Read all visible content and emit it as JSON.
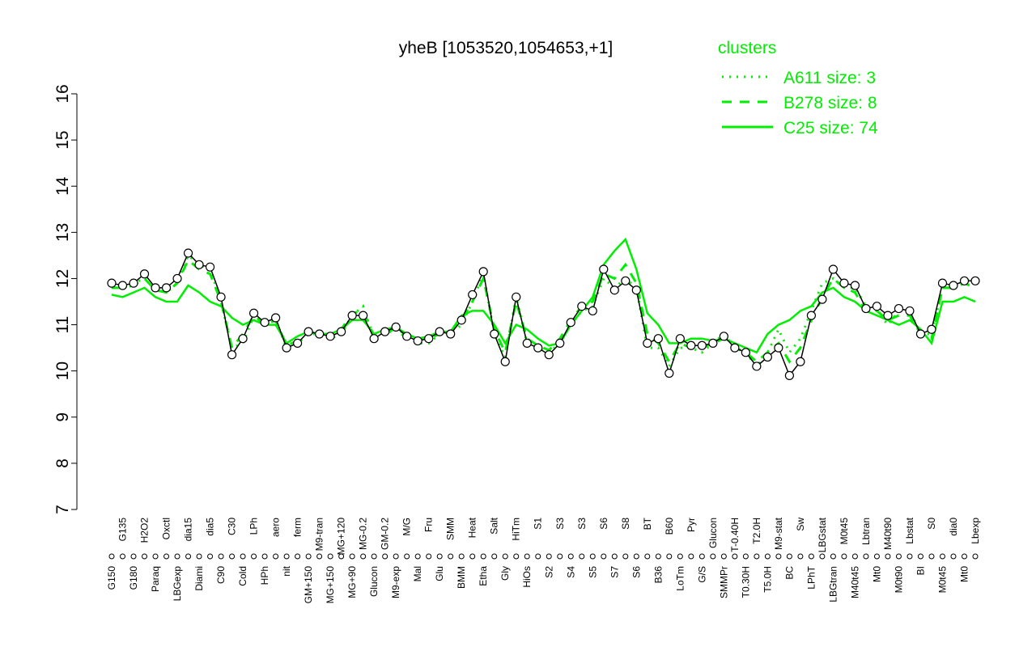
{
  "chart_data": {
    "type": "line",
    "title": "yheB [1053520,1054653,+1]",
    "legend_title": "clusters",
    "legend_color": "#00ee00",
    "color": "#000000",
    "ylim": [
      7,
      16
    ],
    "yticks": [
      7,
      8,
      9,
      10,
      11,
      12,
      13,
      14,
      15,
      16
    ],
    "categories": [
      "G150",
      "G135",
      "G180",
      "H2O2",
      "Paraq",
      "Oxctl",
      "LBGexp",
      "dia15",
      "Diami",
      "dia5",
      "C90",
      "C30",
      "Cold",
      "LPh",
      "HPh",
      "aero",
      "nit",
      "ferm",
      "GM+150",
      "M9-tran",
      "MG+150",
      "MG+120",
      "MG+90",
      "MG-0.2",
      "Glucon",
      "GM-0.2",
      "M9-exp",
      "M/G",
      "Mal",
      "Fru",
      "Glu",
      "SMM",
      "BMM",
      "Heat",
      "Etha",
      "Salt",
      "Gly",
      "HiTm",
      "HiOs",
      "S1",
      "S2",
      "S3",
      "S4",
      "S3",
      "S5",
      "S6",
      "S7",
      "S8",
      "S6",
      "BT",
      "B36",
      "B60",
      "LoTm",
      "Pyr",
      "G/S",
      "Glucon",
      "SMMPr",
      "T-0.40H",
      "T0.30H",
      "T2.0H",
      "T5.0H",
      "M9-stat",
      "BC",
      "Sw",
      "LPhT",
      "LBGstat",
      "LBGtran",
      "M0t45",
      "M40t45",
      "Lbtran",
      "Mt0",
      "M40t90",
      "M0t90",
      "Lbstat",
      "BI",
      "S0",
      "M0t45",
      "dia0",
      "Mt0",
      "Lbexp"
    ],
    "values": [
      11.9,
      11.85,
      11.9,
      12.1,
      11.8,
      11.8,
      12.0,
      12.55,
      12.3,
      12.25,
      11.6,
      10.35,
      10.7,
      11.25,
      11.05,
      11.15,
      10.5,
      10.6,
      10.85,
      10.8,
      10.75,
      10.85,
      11.2,
      11.2,
      10.7,
      10.85,
      10.95,
      10.75,
      10.65,
      10.7,
      10.85,
      10.8,
      11.1,
      11.65,
      12.15,
      10.8,
      10.2,
      11.6,
      10.6,
      10.5,
      10.35,
      10.6,
      11.05,
      11.4,
      11.3,
      12.2,
      11.75,
      11.95,
      11.75,
      10.6,
      10.7,
      9.95,
      10.7,
      10.55,
      10.55,
      10.6,
      10.75,
      10.5,
      10.4,
      10.1,
      10.3,
      10.5,
      9.9,
      10.2,
      11.2,
      11.55,
      12.2,
      11.9,
      11.85,
      11.35,
      11.4,
      11.2,
      11.35,
      11.3,
      10.8,
      10.9,
      11.9,
      11.85,
      11.95,
      11.95
    ],
    "series": [
      {
        "name": "A611 size: 3",
        "color": "#00ee00",
        "dash": "dotted",
        "values": [
          11.9,
          11.8,
          11.9,
          12.0,
          11.8,
          11.7,
          11.9,
          12.5,
          12.3,
          12.2,
          11.5,
          10.5,
          10.6,
          11.2,
          11.0,
          11.1,
          10.5,
          10.6,
          10.8,
          10.8,
          10.7,
          10.8,
          11.2,
          11.4,
          10.7,
          10.8,
          10.9,
          10.7,
          10.6,
          10.6,
          10.8,
          10.8,
          11.0,
          11.5,
          12.1,
          10.8,
          10.3,
          11.6,
          10.6,
          10.5,
          10.4,
          10.6,
          11.0,
          11.3,
          11.4,
          12.0,
          11.8,
          12.0,
          11.8,
          10.5,
          10.5,
          10.1,
          10.5,
          10.5,
          10.4,
          10.6,
          10.8,
          10.5,
          10.4,
          10.1,
          10.4,
          10.9,
          10.4,
          10.7,
          11.3,
          11.9,
          12.0,
          11.8,
          11.8,
          11.4,
          11.3,
          11.0,
          11.3,
          11.3,
          10.8,
          10.8,
          11.8,
          11.8,
          12.0,
          11.9
        ]
      },
      {
        "name": "B278 size: 8",
        "color": "#00ee00",
        "dash": "dashed",
        "values": [
          11.8,
          11.8,
          11.85,
          12.0,
          11.75,
          11.7,
          11.9,
          12.4,
          12.2,
          12.1,
          11.5,
          10.5,
          10.8,
          11.2,
          11.0,
          11.1,
          10.55,
          10.65,
          10.85,
          10.8,
          10.8,
          10.9,
          11.25,
          11.3,
          10.75,
          10.85,
          10.9,
          10.8,
          10.7,
          10.7,
          10.8,
          10.85,
          11.1,
          11.5,
          12.0,
          10.9,
          10.4,
          11.5,
          10.7,
          10.55,
          10.45,
          10.7,
          11.1,
          11.4,
          11.5,
          12.1,
          12.0,
          12.3,
          11.9,
          10.8,
          10.6,
          10.2,
          10.6,
          10.5,
          10.5,
          10.6,
          10.7,
          10.5,
          10.4,
          10.2,
          10.4,
          10.6,
          10.2,
          10.5,
          11.1,
          11.6,
          12.0,
          11.8,
          11.7,
          11.3,
          11.3,
          11.1,
          11.2,
          11.2,
          10.8,
          10.7,
          11.8,
          11.8,
          11.9,
          11.8
        ]
      },
      {
        "name": "C25 size: 74",
        "color": "#00ee00",
        "dash": "solid",
        "values": [
          11.65,
          11.6,
          11.7,
          11.8,
          11.6,
          11.5,
          11.5,
          11.85,
          11.7,
          11.5,
          11.4,
          11.15,
          11.0,
          11.1,
          11.0,
          11.0,
          10.6,
          10.75,
          10.85,
          10.8,
          10.8,
          10.9,
          11.1,
          11.1,
          10.8,
          10.9,
          10.95,
          10.8,
          10.7,
          10.75,
          10.85,
          10.85,
          11.2,
          11.3,
          11.3,
          11.0,
          10.6,
          11.0,
          10.9,
          10.7,
          10.55,
          10.6,
          11.0,
          11.3,
          11.6,
          12.3,
          12.6,
          12.85,
          12.2,
          11.25,
          11.0,
          10.6,
          10.6,
          10.7,
          10.7,
          10.65,
          10.7,
          10.6,
          10.5,
          10.4,
          10.8,
          11.0,
          11.1,
          11.3,
          11.4,
          11.7,
          11.8,
          11.6,
          11.5,
          11.3,
          11.2,
          11.1,
          11.0,
          11.1,
          10.9,
          10.6,
          11.5,
          11.5,
          11.6,
          11.5
        ]
      }
    ]
  }
}
